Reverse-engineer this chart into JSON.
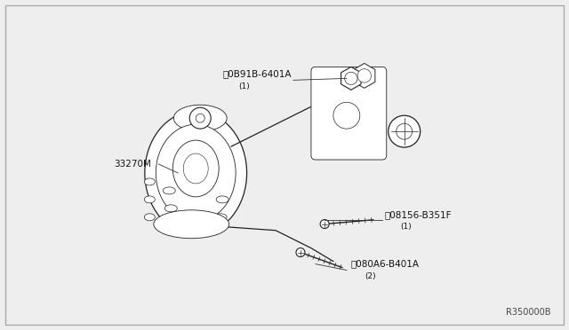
{
  "bg_color": "#eeeeee",
  "fig_ref": "R350000B",
  "line_color": "#222222",
  "label_color": "#111111",
  "label_N_text": "0B91B-6401A",
  "label_N_sub": "(1)",
  "label_33270M": "33270M",
  "label_B1_text": "08156-B351F",
  "label_B1_sub": "(1)",
  "label_B2_text": "080A6-B401A",
  "label_B2_sub": "(2)"
}
